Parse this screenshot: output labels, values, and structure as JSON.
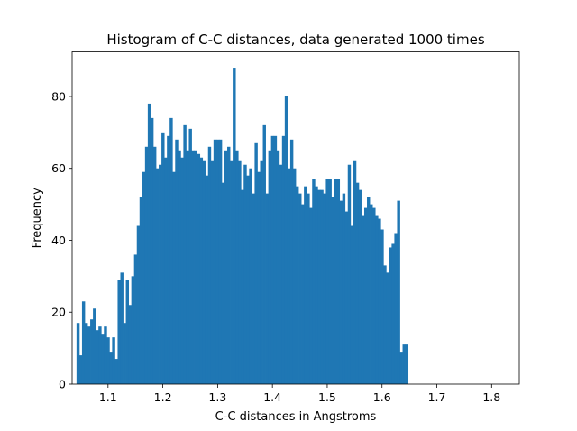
{
  "chart_data": {
    "type": "bar",
    "title": "Histogram of C-C distances, data generated 1000 times",
    "xlabel": "C-C distances in Angstroms",
    "ylabel": "Frequency",
    "xlim": [
      1.0345,
      1.8505
    ],
    "ylim": [
      0,
      92.4
    ],
    "xticks": [
      "1.1",
      "1.2",
      "1.3",
      "1.4",
      "1.5",
      "1.6",
      "1.7",
      "1.8"
    ],
    "xtick_values": [
      1.1,
      1.2,
      1.3,
      1.4,
      1.5,
      1.6,
      1.7,
      1.8
    ],
    "yticks": [
      "0",
      "20",
      "40",
      "60",
      "80"
    ],
    "ytick_values": [
      0,
      20,
      40,
      60,
      80
    ],
    "bin_start": 1.0425,
    "bin_width": 0.005,
    "values": [
      17,
      8,
      23,
      17,
      16,
      18,
      21,
      15,
      16,
      14,
      16,
      13,
      9,
      13,
      7,
      29,
      31,
      17,
      29,
      22,
      30,
      36,
      44,
      52,
      59,
      66,
      78,
      74,
      66,
      60,
      61,
      70,
      63,
      69,
      74,
      59,
      68,
      65,
      63,
      72,
      65,
      71,
      65,
      65,
      64,
      63,
      62,
      58,
      66,
      62,
      68,
      68,
      68,
      56,
      65,
      66,
      62,
      88,
      65,
      62,
      54,
      61,
      58,
      60,
      53,
      67,
      59,
      62,
      72,
      53,
      65,
      69,
      69,
      65,
      61,
      69,
      80,
      60,
      68,
      60,
      55,
      53,
      50,
      55,
      53,
      49,
      57,
      55,
      54,
      54,
      53,
      57,
      57,
      52,
      57,
      57,
      51,
      53,
      48,
      61,
      44,
      62,
      56,
      54,
      47,
      49,
      52,
      50,
      49,
      47,
      46,
      43,
      33,
      31,
      38,
      39,
      42,
      51,
      9,
      11,
      11
    ],
    "bar_color": "#1f77b4",
    "grid": false
  }
}
